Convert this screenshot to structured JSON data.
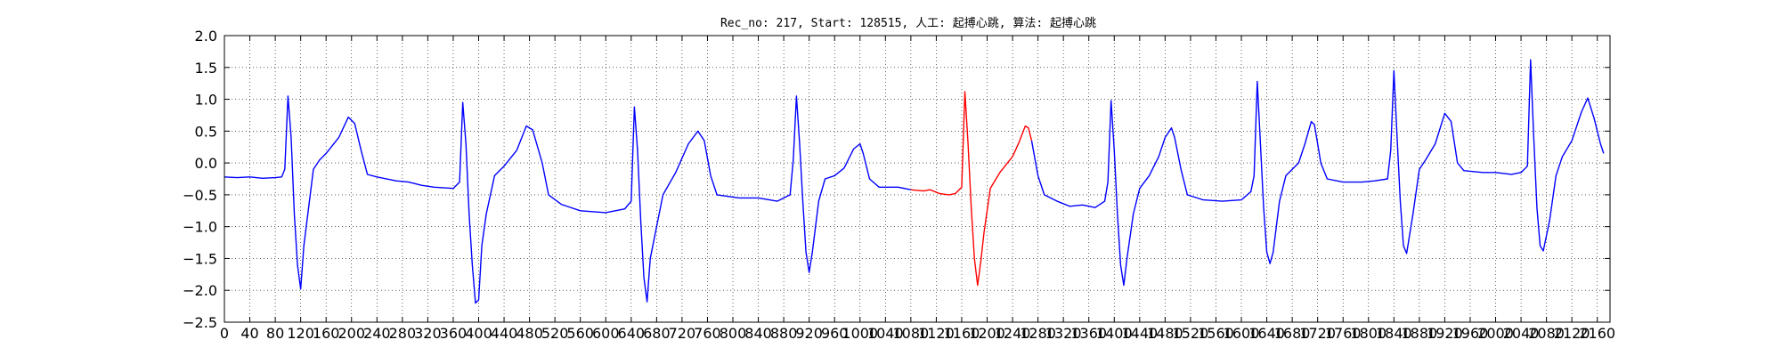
{
  "chart_data": {
    "type": "line",
    "title": "Rec_no: 217, Start: 128515, 人工: 起搏心跳, 算法: 起搏心跳",
    "xlabel": "",
    "ylabel": "",
    "xlim": [
      0,
      2180
    ],
    "ylim": [
      -2.5,
      2.0
    ],
    "grid": true,
    "yticks": [
      2.0,
      1.5,
      1.0,
      0.5,
      0.0,
      -0.5,
      -1.0,
      -1.5,
      -2.0,
      -2.5
    ],
    "ytick_labels": [
      "2.0",
      "1.5",
      "1.0",
      "0.5",
      "0.0",
      "−0.5",
      "−1.0",
      "−1.5",
      "−2.0",
      "−2.5"
    ],
    "xticks": [
      0,
      40,
      80,
      120,
      160,
      200,
      240,
      280,
      320,
      360,
      400,
      440,
      480,
      520,
      560,
      600,
      640,
      680,
      720,
      760,
      800,
      840,
      880,
      920,
      960,
      1000,
      1040,
      1080,
      1120,
      1160,
      1200,
      1240,
      1280,
      1320,
      1360,
      1400,
      1440,
      1480,
      1520,
      1560,
      1600,
      1640,
      1680,
      1720,
      1760,
      1800,
      1840,
      1880,
      1920,
      1960,
      2000,
      2040,
      2080,
      2120,
      2160
    ],
    "xtick_labels": [
      "0",
      "40",
      "80",
      "120",
      "160",
      "200",
      "240",
      "280",
      "320",
      "360",
      "400",
      "440",
      "480",
      "520",
      "560",
      "600",
      "640",
      "680",
      "720",
      "760",
      "800",
      "840",
      "880",
      "920",
      "960",
      "1000",
      "1040",
      "1080",
      "1120",
      "1160",
      "1200",
      "1240",
      "1280",
      "1320",
      "1360",
      "1400",
      "1440",
      "1480",
      "1520",
      "1560",
      "1600",
      "1640",
      "1680",
      "1720",
      "1760",
      "1800",
      "1840",
      "1880",
      "1920",
      "1960",
      "2000",
      "2040",
      "2080",
      "2120",
      "2160"
    ],
    "series": [
      {
        "color": "#0000ff",
        "points": [
          [
            0,
            -0.22
          ],
          [
            20,
            -0.23
          ],
          [
            40,
            -0.22
          ],
          [
            60,
            -0.24
          ],
          [
            80,
            -0.23
          ],
          [
            90,
            -0.22
          ],
          [
            95,
            -0.1
          ],
          [
            100,
            1.05
          ],
          [
            105,
            0.4
          ],
          [
            110,
            -0.8
          ],
          [
            115,
            -1.6
          ],
          [
            120,
            -1.98
          ],
          [
            125,
            -1.3
          ],
          [
            130,
            -0.9
          ],
          [
            140,
            -0.1
          ],
          [
            150,
            0.05
          ],
          [
            160,
            0.15
          ],
          [
            180,
            0.4
          ],
          [
            195,
            0.72
          ],
          [
            205,
            0.62
          ],
          [
            215,
            0.2
          ],
          [
            225,
            -0.18
          ],
          [
            240,
            -0.22
          ],
          [
            270,
            -0.28
          ],
          [
            290,
            -0.3
          ],
          [
            310,
            -0.35
          ],
          [
            330,
            -0.38
          ],
          [
            360,
            -0.4
          ],
          [
            370,
            -0.3
          ],
          [
            375,
            0.95
          ],
          [
            380,
            0.3
          ],
          [
            385,
            -0.8
          ],
          [
            390,
            -1.6
          ],
          [
            395,
            -2.2
          ],
          [
            400,
            -2.15
          ],
          [
            405,
            -1.3
          ],
          [
            412,
            -0.8
          ],
          [
            425,
            -0.2
          ],
          [
            440,
            -0.05
          ],
          [
            460,
            0.2
          ],
          [
            475,
            0.58
          ],
          [
            485,
            0.52
          ],
          [
            500,
            0.0
          ],
          [
            510,
            -0.5
          ],
          [
            530,
            -0.65
          ],
          [
            560,
            -0.75
          ],
          [
            600,
            -0.78
          ],
          [
            630,
            -0.72
          ],
          [
            640,
            -0.6
          ],
          [
            645,
            0.88
          ],
          [
            650,
            0.2
          ],
          [
            655,
            -0.9
          ],
          [
            660,
            -1.8
          ],
          [
            665,
            -2.18
          ],
          [
            670,
            -1.5
          ],
          [
            680,
            -1.0
          ],
          [
            690,
            -0.5
          ],
          [
            710,
            -0.15
          ],
          [
            730,
            0.3
          ],
          [
            745,
            0.5
          ],
          [
            755,
            0.35
          ],
          [
            765,
            -0.2
          ],
          [
            775,
            -0.5
          ],
          [
            810,
            -0.55
          ],
          [
            840,
            -0.55
          ],
          [
            870,
            -0.6
          ],
          [
            890,
            -0.5
          ],
          [
            895,
            0.05
          ],
          [
            900,
            1.05
          ],
          [
            905,
            0.3
          ],
          [
            910,
            -0.6
          ],
          [
            915,
            -1.4
          ],
          [
            920,
            -1.72
          ],
          [
            925,
            -1.4
          ],
          [
            935,
            -0.6
          ],
          [
            945,
            -0.25
          ],
          [
            960,
            -0.2
          ],
          [
            975,
            -0.08
          ],
          [
            990,
            0.22
          ],
          [
            1000,
            0.3
          ],
          [
            1005,
            0.15
          ],
          [
            1015,
            -0.25
          ],
          [
            1030,
            -0.38
          ],
          [
            1060,
            -0.38
          ],
          [
            1080,
            -0.42
          ]
        ]
      },
      {
        "color": "#ff0000",
        "points": [
          [
            1080,
            -0.42
          ],
          [
            1100,
            -0.44
          ],
          [
            1110,
            -0.42
          ],
          [
            1125,
            -0.48
          ],
          [
            1140,
            -0.5
          ],
          [
            1150,
            -0.48
          ],
          [
            1160,
            -0.38
          ],
          [
            1165,
            1.12
          ],
          [
            1170,
            0.3
          ],
          [
            1175,
            -0.7
          ],
          [
            1180,
            -1.5
          ],
          [
            1185,
            -1.92
          ],
          [
            1190,
            -1.55
          ],
          [
            1195,
            -1.1
          ],
          [
            1205,
            -0.4
          ],
          [
            1220,
            -0.15
          ],
          [
            1240,
            0.1
          ],
          [
            1250,
            0.32
          ],
          [
            1260,
            0.58
          ],
          [
            1265,
            0.55
          ],
          [
            1270,
            0.35
          ]
        ]
      },
      {
        "color": "#0000ff",
        "points": [
          [
            1270,
            0.35
          ],
          [
            1280,
            -0.2
          ],
          [
            1290,
            -0.5
          ],
          [
            1310,
            -0.6
          ],
          [
            1330,
            -0.68
          ],
          [
            1350,
            -0.66
          ],
          [
            1370,
            -0.7
          ],
          [
            1385,
            -0.6
          ],
          [
            1390,
            -0.3
          ],
          [
            1395,
            0.98
          ],
          [
            1400,
            0.2
          ],
          [
            1405,
            -0.8
          ],
          [
            1410,
            -1.6
          ],
          [
            1415,
            -1.92
          ],
          [
            1420,
            -1.5
          ],
          [
            1430,
            -0.8
          ],
          [
            1440,
            -0.4
          ],
          [
            1455,
            -0.2
          ],
          [
            1470,
            0.1
          ],
          [
            1480,
            0.4
          ],
          [
            1490,
            0.55
          ],
          [
            1495,
            0.4
          ],
          [
            1505,
            -0.1
          ],
          [
            1515,
            -0.5
          ],
          [
            1540,
            -0.58
          ],
          [
            1570,
            -0.6
          ],
          [
            1600,
            -0.58
          ],
          [
            1615,
            -0.45
          ],
          [
            1620,
            -0.2
          ],
          [
            1625,
            1.28
          ],
          [
            1630,
            0.3
          ],
          [
            1635,
            -0.7
          ],
          [
            1640,
            -1.4
          ],
          [
            1645,
            -1.58
          ],
          [
            1650,
            -1.4
          ],
          [
            1660,
            -0.6
          ],
          [
            1670,
            -0.2
          ],
          [
            1690,
            0.0
          ],
          [
            1700,
            0.3
          ],
          [
            1710,
            0.65
          ],
          [
            1715,
            0.6
          ],
          [
            1725,
            0.0
          ],
          [
            1735,
            -0.25
          ],
          [
            1760,
            -0.3
          ],
          [
            1790,
            -0.3
          ],
          [
            1810,
            -0.28
          ],
          [
            1830,
            -0.25
          ],
          [
            1835,
            0.2
          ],
          [
            1840,
            1.45
          ],
          [
            1845,
            0.4
          ],
          [
            1850,
            -0.6
          ],
          [
            1855,
            -1.3
          ],
          [
            1860,
            -1.42
          ],
          [
            1870,
            -0.8
          ],
          [
            1880,
            -0.1
          ],
          [
            1890,
            0.05
          ],
          [
            1905,
            0.3
          ],
          [
            1920,
            0.78
          ],
          [
            1930,
            0.65
          ],
          [
            1940,
            0.0
          ],
          [
            1950,
            -0.12
          ],
          [
            1980,
            -0.15
          ],
          [
            2000,
            -0.15
          ],
          [
            2025,
            -0.18
          ],
          [
            2040,
            -0.15
          ],
          [
            2050,
            -0.05
          ],
          [
            2055,
            1.62
          ],
          [
            2060,
            0.4
          ],
          [
            2065,
            -0.7
          ],
          [
            2070,
            -1.3
          ],
          [
            2075,
            -1.38
          ],
          [
            2085,
            -0.9
          ],
          [
            2095,
            -0.2
          ],
          [
            2105,
            0.1
          ],
          [
            2120,
            0.35
          ],
          [
            2135,
            0.8
          ],
          [
            2145,
            1.02
          ],
          [
            2155,
            0.7
          ],
          [
            2165,
            0.3
          ],
          [
            2170,
            0.15
          ]
        ]
      }
    ]
  }
}
